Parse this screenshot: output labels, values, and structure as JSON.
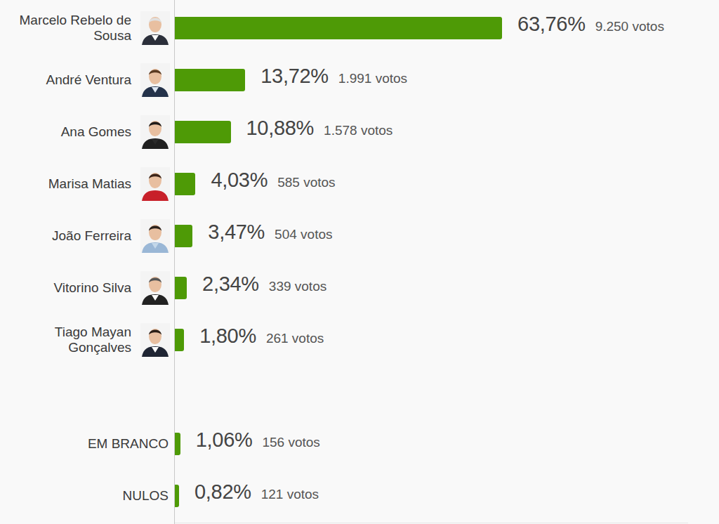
{
  "chart_data": {
    "type": "bar",
    "orientation": "horizontal",
    "categories": [
      "Marcelo Rebelo de Sousa",
      "André Ventura",
      "Ana Gomes",
      "Marisa Matias",
      "João Ferreira",
      "Vitorino Silva",
      "Tiago Mayan Gonçalves",
      "EM BRANCO",
      "NULOS"
    ],
    "values": [
      63.76,
      13.72,
      10.88,
      4.03,
      3.47,
      2.34,
      1.8,
      1.06,
      0.82
    ],
    "value_labels": [
      "63,76%",
      "13,72%",
      "10,88%",
      "4,03%",
      "3,47%",
      "2,34%",
      "1,80%",
      "1,06%",
      "0,82%"
    ],
    "vote_labels": [
      "9.250 votos",
      "1.991 votos",
      "1.578 votos",
      "585 votos",
      "504 votos",
      "339 votos",
      "261 votos",
      "156 votos",
      "121 votos"
    ],
    "color": "#4e9a06",
    "xlim": [
      0,
      100
    ],
    "data_labels": true,
    "tick_labels": false,
    "grid": false
  }
}
